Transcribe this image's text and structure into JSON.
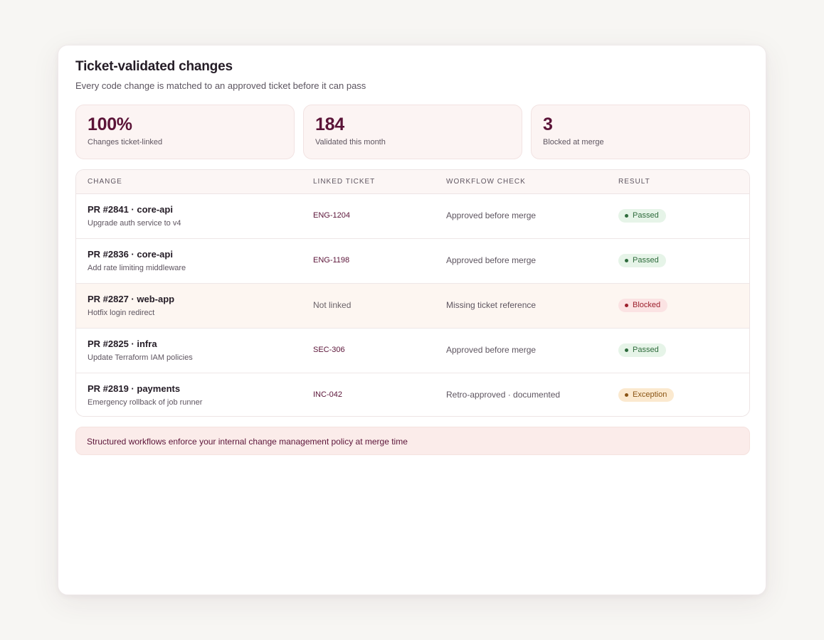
{
  "header": {
    "title": "Ticket-validated changes",
    "subtitle": "Every code change is matched to an approved ticket before it can pass"
  },
  "stats": [
    {
      "value": "100%",
      "label": "Changes ticket-linked"
    },
    {
      "value": "184",
      "label": "Validated this month"
    },
    {
      "value": "3",
      "label": "Blocked at merge"
    }
  ],
  "table": {
    "columns": [
      "CHANGE",
      "LINKED TICKET",
      "WORKFLOW CHECK",
      "RESULT"
    ],
    "rows": [
      {
        "title": "PR #2841 · core-api",
        "desc": "Upgrade auth service to v4",
        "ticket": "ENG-1204",
        "check": "Approved before merge",
        "result": "Passed"
      },
      {
        "title": "PR #2836 · core-api",
        "desc": "Add rate limiting middleware",
        "ticket": "ENG-1198",
        "check": "Approved before merge",
        "result": "Passed"
      },
      {
        "title": "PR #2827 · web-app",
        "desc": "Hotfix login redirect",
        "ticket": "Not linked",
        "check": "Missing ticket reference",
        "result": "Blocked"
      },
      {
        "title": "PR #2825 · infra",
        "desc": "Update Terraform IAM policies",
        "ticket": "SEC-306",
        "check": "Approved before merge",
        "result": "Passed"
      },
      {
        "title": "PR #2819 · payments",
        "desc": "Emergency rollback of job runner",
        "ticket": "INC-042",
        "check": "Retro-approved · documented",
        "result": "Exception"
      }
    ]
  },
  "footer": {
    "note": "Structured workflows enforce your internal change management policy at merge time"
  },
  "colors": {
    "accent": "#5b1438",
    "passed": "#2e6b3c",
    "blocked": "#9c1f2c",
    "exception": "#8a5414"
  }
}
